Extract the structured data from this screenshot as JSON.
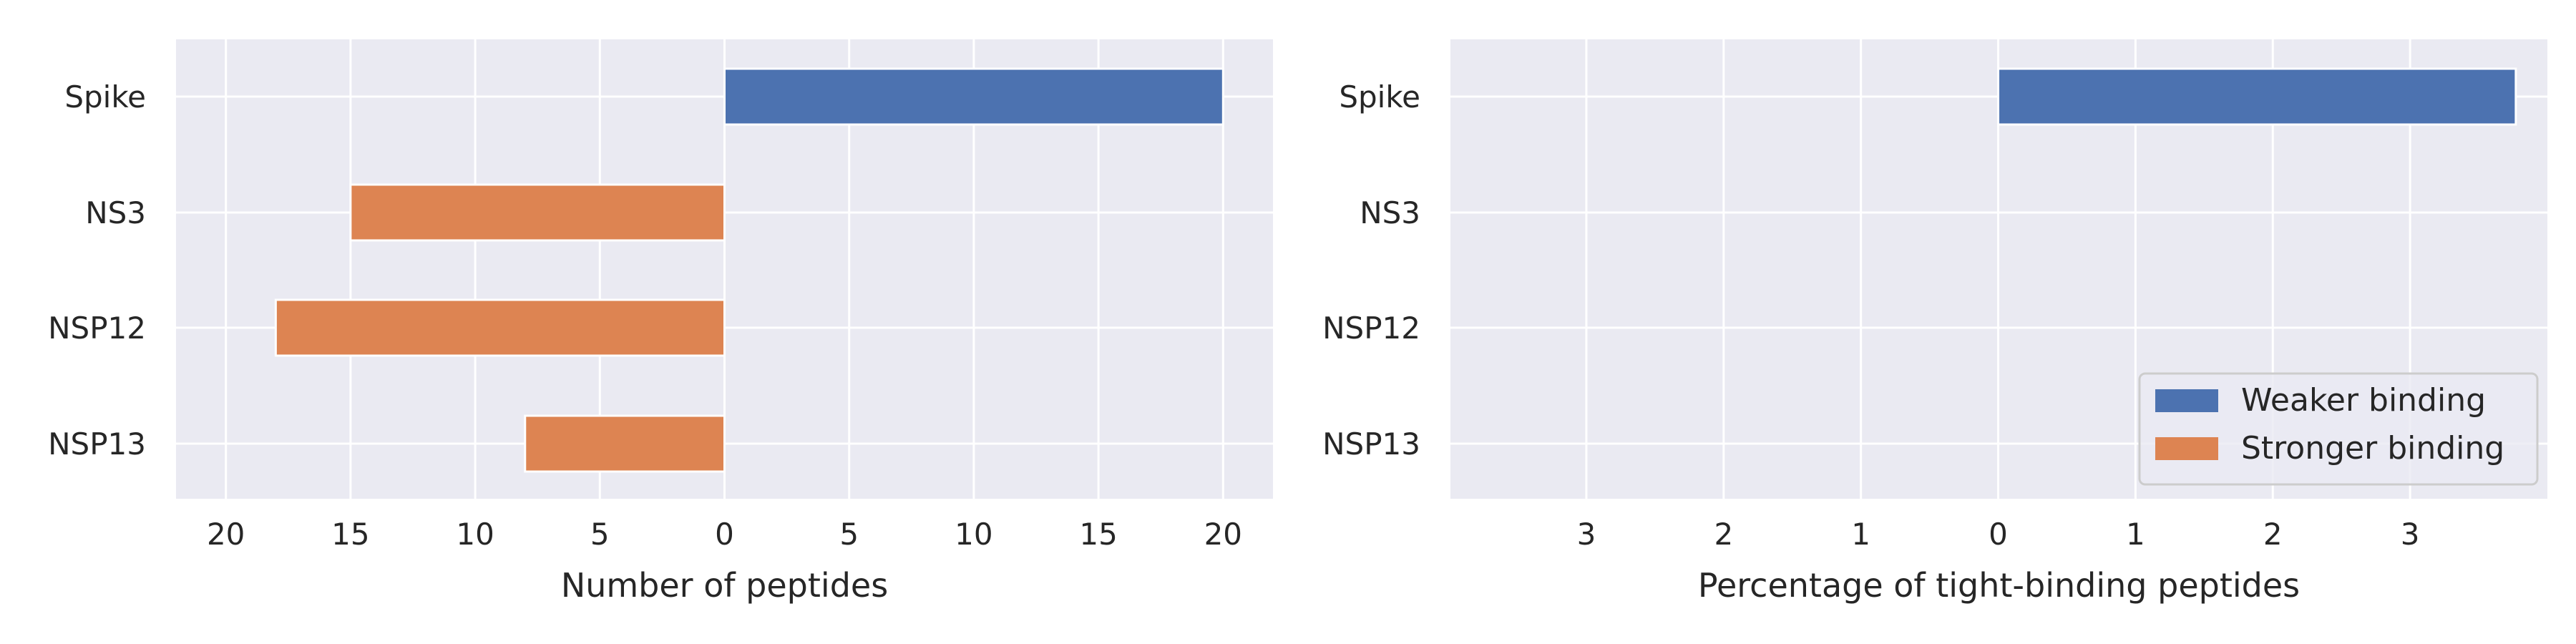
{
  "colors": {
    "background": "#eaeaf2",
    "grid": "#ffffff",
    "weaker": "#4c72b0",
    "stronger": "#dd8452"
  },
  "legend": {
    "placement": "lower-right",
    "entries": [
      "Weaker binding",
      "Stronger binding"
    ]
  },
  "chart_data": [
    {
      "type": "bar",
      "orientation": "horizontal-diverging",
      "xlabel": "Number of peptides",
      "categories": [
        "Spike",
        "NS3",
        "NSP12",
        "NSP13"
      ],
      "xlim": [
        -22,
        22
      ],
      "xticks": [
        -20,
        -15,
        -10,
        -5,
        0,
        5,
        10,
        15,
        20
      ],
      "tick_labels": [
        "20",
        "15",
        "10",
        "5",
        "0",
        "5",
        "10",
        "15",
        "20"
      ],
      "grid": true,
      "series": [
        {
          "name": "Weaker binding",
          "values": [
            20,
            0,
            0,
            0
          ]
        },
        {
          "name": "Stronger binding",
          "values": [
            0,
            15,
            18,
            8
          ]
        }
      ]
    },
    {
      "type": "bar",
      "orientation": "horizontal-diverging",
      "xlabel": "Percentage of tight-binding peptides",
      "categories": [
        "Spike",
        "NS3",
        "NSP12",
        "NSP13"
      ],
      "xlim": [
        -3.99,
        4.0
      ],
      "xticks": [
        -3,
        -2,
        -1,
        0,
        1,
        2,
        3
      ],
      "tick_labels": [
        "3",
        "2",
        "1",
        "0",
        "1",
        "2",
        "3"
      ],
      "grid": true,
      "series": [
        {
          "name": "Weaker binding",
          "values": [
            3.77,
            0,
            0,
            0
          ]
        },
        {
          "name": "Stronger binding",
          "values": [
            0,
            0,
            0,
            0
          ]
        }
      ]
    }
  ]
}
